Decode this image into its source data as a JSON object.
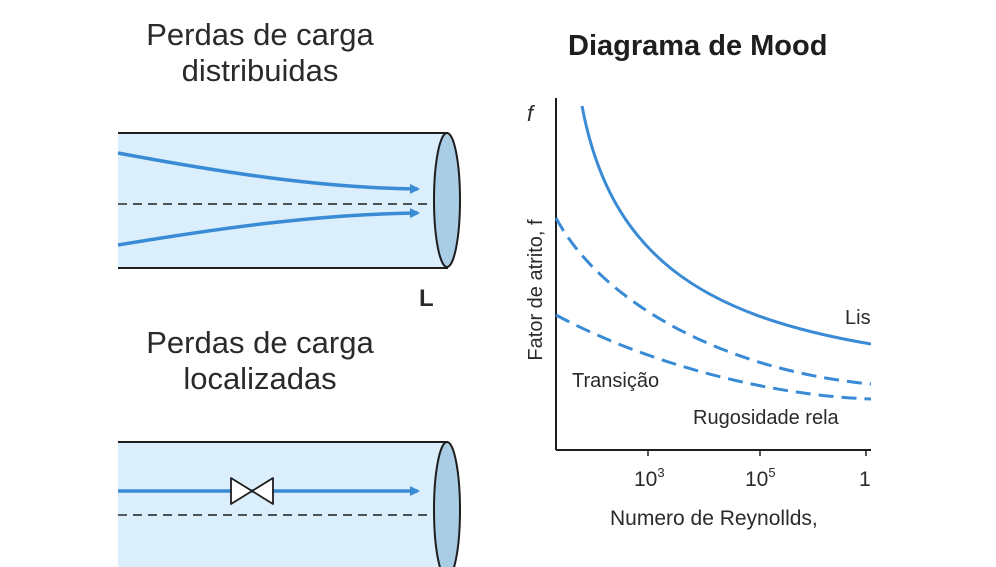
{
  "section_top": {
    "title_line1": "Perdas de carga",
    "title_line2": "distribuidas",
    "length_label": "L"
  },
  "section_bottom": {
    "title_line1": "Perdas de carga",
    "title_line2": "localizadas"
  },
  "moody": {
    "title": "Diagrama de Mood",
    "y_symbol": "f",
    "y_axis_label": "Fator de atrito, f",
    "x_axis_label": "Numero de Reynollds,",
    "x_ticks": [
      {
        "base": "10",
        "exp": "3"
      },
      {
        "base": "10",
        "exp": "5"
      },
      {
        "base": "1",
        "exp": ""
      }
    ],
    "curve_labels": {
      "smooth": "Lis",
      "transition": "Transição",
      "roughness": "Rugosidade rela"
    }
  },
  "colors": {
    "pipe_fill": "#daeefb",
    "pipe_end_fill": "#aacde6",
    "flow": "#3a8bd6",
    "curve": "#3a8bd6",
    "outline": "#1e1e1e"
  }
}
